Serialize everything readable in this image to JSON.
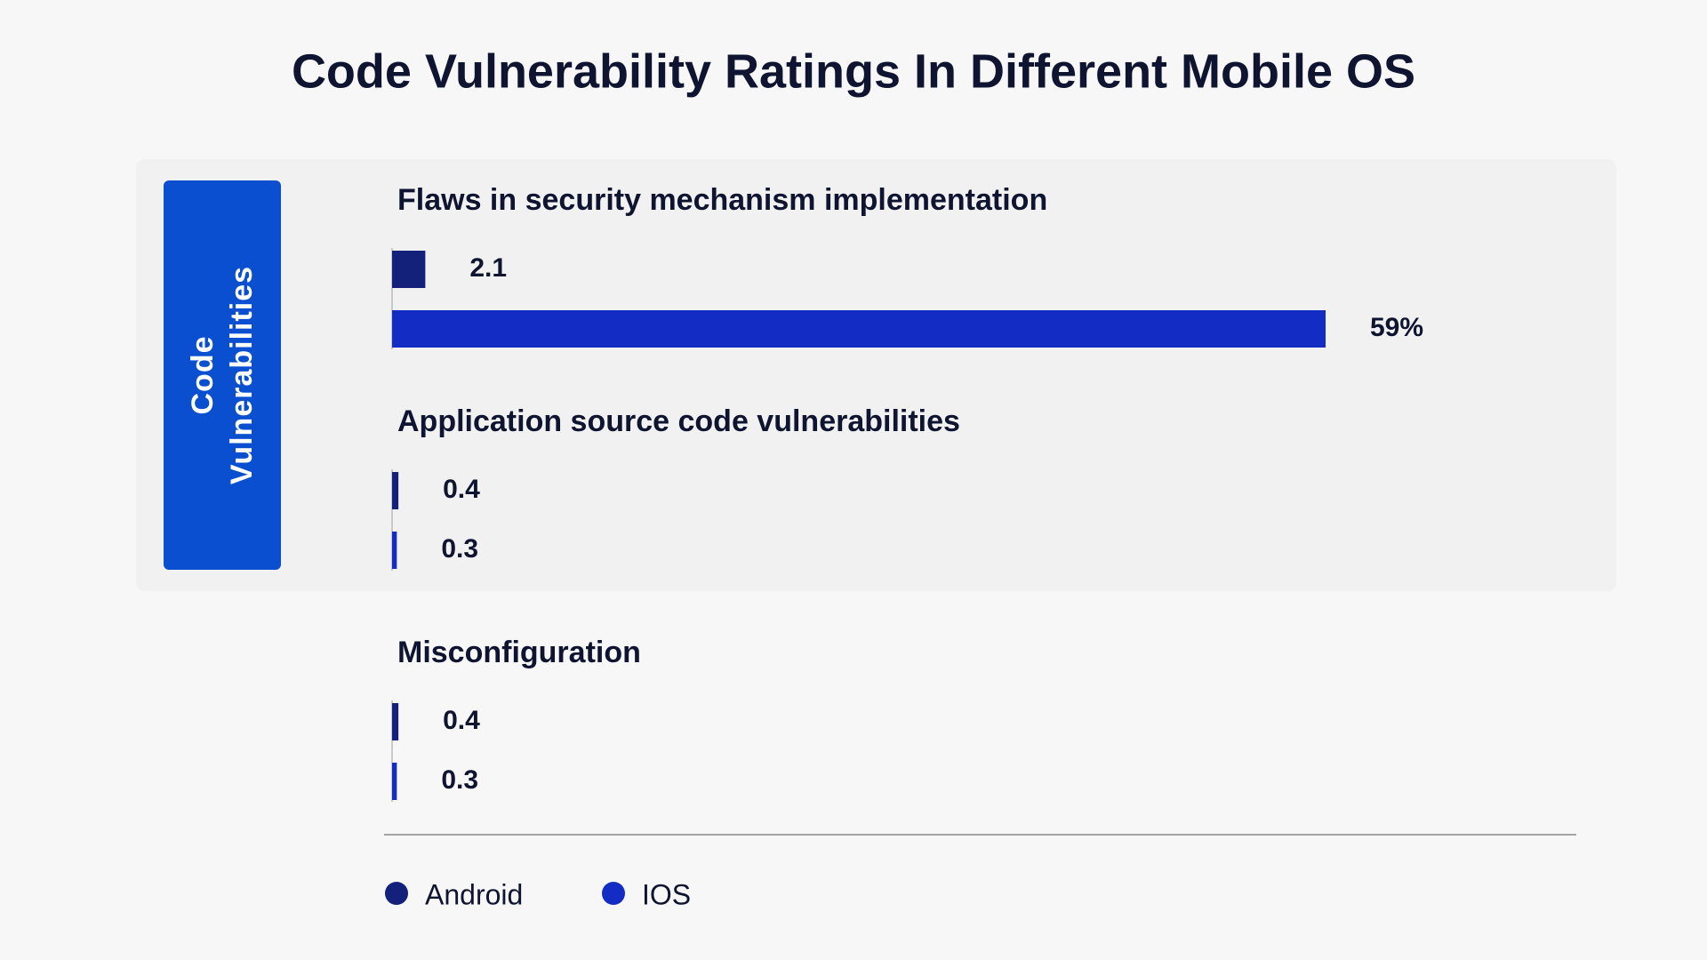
{
  "chart_data": {
    "type": "bar",
    "title": "Code Vulnerability Ratings In Different Mobile OS",
    "group_label": "Code Vulnerabilities",
    "categories": [
      "Flaws in security mechanism implementation",
      "Application source code vulnerabilities",
      "Misconfiguration"
    ],
    "series": [
      {
        "name": "Android",
        "color": "#13217a",
        "values": [
          2.1,
          0.4,
          0.4
        ],
        "value_labels": [
          "2.1",
          "0.4",
          "0.4"
        ]
      },
      {
        "name": "IOS",
        "color": "#132cc4",
        "values": [
          59,
          0.3,
          0.3
        ],
        "value_labels": [
          "59%",
          "0.3",
          "0.3"
        ]
      }
    ]
  }
}
